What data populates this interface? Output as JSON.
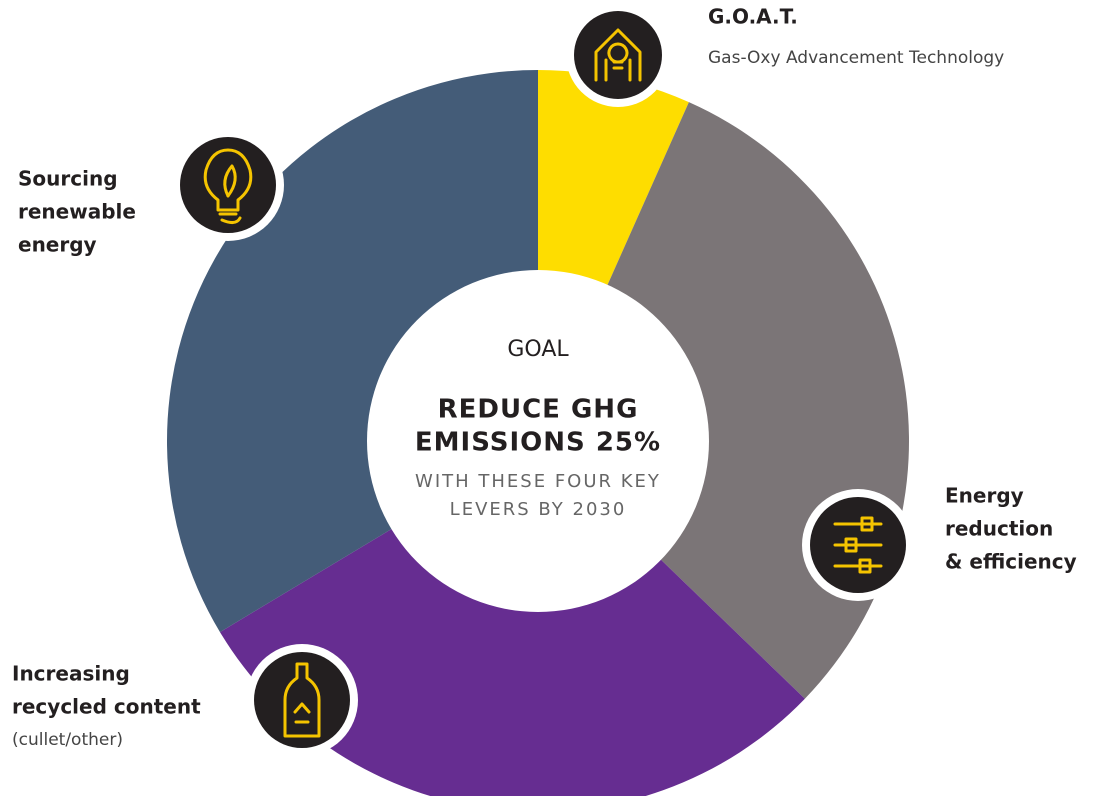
{
  "center": {
    "heading": "GOAL",
    "title": [
      "REDUCE GHG",
      "EMISSIONS 25%"
    ],
    "subtitle": [
      "WITH THESE FOUR KEY",
      "LEVERS BY 2030"
    ]
  },
  "levers": [
    {
      "title": [
        "G.O.A.T."
      ],
      "note": "Gas-Oxy Advancement Technology"
    },
    {
      "title": [
        "Energy",
        "reduction",
        "& efficiency"
      ]
    },
    {
      "title": [
        "Increasing",
        "recycled content"
      ],
      "note": "(cullet/other)"
    },
    {
      "title": [
        "Sourcing",
        "renewable",
        "energy"
      ]
    }
  ]
}
